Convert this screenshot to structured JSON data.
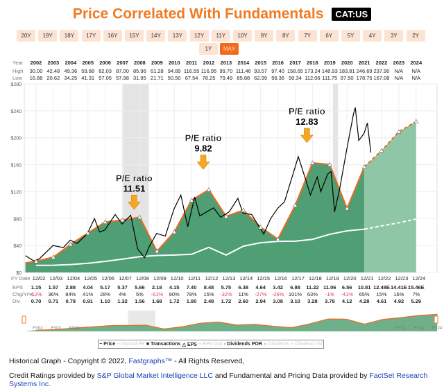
{
  "header": {
    "title": "Price Correlated With Fundamentals",
    "ticker": "CAT:US"
  },
  "ranges": [
    "20Y",
    "19Y",
    "18Y",
    "17Y",
    "16Y",
    "15Y",
    "14Y",
    "13Y",
    "12Y",
    "11Y",
    "10Y",
    "9Y",
    "8Y",
    "7Y",
    "6Y",
    "5Y",
    "4Y",
    "3Y",
    "2Y",
    "1Y",
    "MAX"
  ],
  "active_range": "MAX",
  "table": {
    "year_label": "Year",
    "high_label": "High",
    "low_label": "Low",
    "years": [
      "2002",
      "2003",
      "2004",
      "2005",
      "2006",
      "2007",
      "2008",
      "2009",
      "2010",
      "2011",
      "2012",
      "2013",
      "2014",
      "2015",
      "2016",
      "2017",
      "2018",
      "2019",
      "2020",
      "2021",
      "2022",
      "2023",
      "2024"
    ],
    "high": [
      "30.00",
      "42.48",
      "49.36",
      "59.88",
      "82.03",
      "87.00",
      "85.96",
      "61.28",
      "94.89",
      "116.55",
      "116.95",
      "99.70",
      "111.46",
      "93.57",
      "97.40",
      "158.65",
      "173.24",
      "148.93",
      "183.81",
      "246.69",
      "237.90",
      "N/A",
      "N/A"
    ],
    "low": [
      "16.88",
      "20.62",
      "34.25",
      "41.31",
      "57.05",
      "57.98",
      "31.95",
      "21.71",
      "50.50",
      "67.54",
      "78.25",
      "79.49",
      "85.88",
      "62.99",
      "56.36",
      "90.34",
      "112.06",
      "111.75",
      "87.50",
      "178.75",
      "167.08",
      "N/A",
      "N/A"
    ]
  },
  "bottom": {
    "fy_label": "FY Date",
    "eps_label": "EPS",
    "chg_label": "Chg/Yr%",
    "div_label": "Div",
    "fy": [
      "12/02",
      "12/03",
      "12/04",
      "12/05",
      "12/06",
      "12/07",
      "12/08",
      "12/09",
      "12/10",
      "12/11",
      "12/12",
      "12/13",
      "12/14",
      "12/15",
      "12/16",
      "12/17",
      "12/18",
      "12/19",
      "12/20",
      "12/21",
      "12/22",
      "12/23",
      "12/24"
    ],
    "eps": [
      "1.15",
      "1.57",
      "2.88",
      "4.04",
      "5.17",
      "5.37",
      "5.66",
      "2.18",
      "4.15",
      "7.40",
      "8.48",
      "5.75",
      "6.38",
      "4.64",
      "3.42",
      "6.88",
      "11.22",
      "11.06",
      "6.56",
      "10.81",
      "12.48E",
      "14.41E",
      "15.46E"
    ],
    "chg": [
      "-12%",
      "36%",
      "84%",
      "41%",
      "28%",
      "4%",
      "5%",
      "-61%",
      "90%",
      "78%",
      "15%",
      "-32%",
      "11%",
      "-27%",
      "-26%",
      "101%",
      "63%",
      "-1%",
      "-41%",
      "65%",
      "15%",
      "16%",
      "7%"
    ],
    "div": [
      "0.70",
      "0.71",
      "0.78",
      "0.91",
      "1.10",
      "1.32",
      "1.56",
      "1.68",
      "1.72",
      "1.80",
      "2.48",
      "1.72",
      "2.60",
      "2.94",
      "3.08",
      "3.10",
      "3.28",
      "3.78",
      "4.12",
      "4.28",
      "4.61",
      "4.92",
      "5.29"
    ]
  },
  "chart_data": {
    "type": "line",
    "title": "Price Correlated With Fundamentals",
    "ylim": [
      0,
      280
    ],
    "yticks": [
      "$0",
      "$40",
      "$80",
      "$120",
      "$160",
      "$200",
      "$240",
      "$280"
    ],
    "ytick_values": [
      0,
      40,
      80,
      120,
      160,
      200,
      240,
      280
    ],
    "pe_multiplier": 14.5,
    "div_multiplier": 15,
    "forecast_start_index": 19,
    "recessions": [
      [
        2007.95,
        2009.45
      ],
      [
        2020.1,
        2020.4
      ]
    ],
    "eps_values": [
      1.15,
      1.57,
      2.88,
      4.04,
      5.17,
      5.37,
      5.66,
      2.18,
      4.15,
      7.4,
      8.48,
      5.75,
      6.38,
      4.64,
      3.42,
      6.88,
      11.22,
      11.06,
      6.56,
      10.81,
      12.48,
      14.41,
      15.46
    ],
    "div_values": [
      0.7,
      0.71,
      0.78,
      0.91,
      1.1,
      1.32,
      1.56,
      1.68,
      1.72,
      1.8,
      2.48,
      1.72,
      2.6,
      2.94,
      3.08,
      3.1,
      3.28,
      3.78,
      4.12,
      4.28,
      4.61,
      4.92,
      5.29
    ],
    "price": [
      [
        2002.3,
        25
      ],
      [
        2002.8,
        17
      ],
      [
        2003.1,
        20
      ],
      [
        2003.9,
        40
      ],
      [
        2004.5,
        37
      ],
      [
        2004.9,
        48
      ],
      [
        2005.3,
        43
      ],
      [
        2005.9,
        58
      ],
      [
        2006.3,
        80
      ],
      [
        2006.6,
        60
      ],
      [
        2006.9,
        63
      ],
      [
        2007.5,
        86
      ],
      [
        2007.9,
        72
      ],
      [
        2008.4,
        85
      ],
      [
        2008.8,
        35
      ],
      [
        2009.2,
        22
      ],
      [
        2009.5,
        40
      ],
      [
        2009.9,
        58
      ],
      [
        2010.4,
        54
      ],
      [
        2010.9,
        94
      ],
      [
        2011.3,
        115
      ],
      [
        2011.7,
        68
      ],
      [
        2012.1,
        112
      ],
      [
        2012.4,
        84
      ],
      [
        2012.8,
        90
      ],
      [
        2013.2,
        96
      ],
      [
        2013.6,
        82
      ],
      [
        2014.1,
        90
      ],
      [
        2014.6,
        110
      ],
      [
        2014.9,
        88
      ],
      [
        2015.4,
        86
      ],
      [
        2015.9,
        65
      ],
      [
        2016.1,
        57
      ],
      [
        2016.5,
        80
      ],
      [
        2016.9,
        95
      ],
      [
        2017.3,
        105
      ],
      [
        2017.9,
        155
      ],
      [
        2018.1,
        172
      ],
      [
        2018.5,
        140
      ],
      [
        2018.8,
        115
      ],
      [
        2019.2,
        142
      ],
      [
        2019.4,
        120
      ],
      [
        2019.8,
        146
      ],
      [
        2020.0,
        150
      ],
      [
        2020.2,
        90
      ],
      [
        2020.5,
        125
      ],
      [
        2020.9,
        182
      ],
      [
        2021.3,
        236
      ],
      [
        2021.4,
        245
      ],
      [
        2021.6,
        196
      ],
      [
        2021.9,
        206
      ],
      [
        2022.1,
        222
      ],
      [
        2022.3,
        178
      ]
    ],
    "annotations": [
      {
        "label": "P/E ratio",
        "value": "11.51",
        "year": 2008
      },
      {
        "label": "P/E ratio",
        "value": "9.82",
        "year": 2012
      },
      {
        "label": "P/E ratio",
        "value": "12.83",
        "year": 2018
      }
    ],
    "navigator_labels": [
      "FY02",
      "FY03",
      "FY04",
      "FY22",
      "FY23",
      "FY24"
    ]
  },
  "legend": [
    {
      "label": "Price",
      "on": true,
      "sym": "−"
    },
    {
      "label": "Normal PE",
      "on": false,
      "sym": "+"
    },
    {
      "label": "Transactions",
      "on": true,
      "sym": "■"
    },
    {
      "label": "EPS",
      "on": true,
      "sym": "△"
    },
    {
      "label": "EPS Gwt",
      "on": false,
      "sym": "+"
    },
    {
      "label": "Dividends POR",
      "on": true,
      "sym": "-"
    },
    {
      "label": "Dividends",
      "on": false,
      "sym": "●"
    },
    {
      "label": "Dividend Yld",
      "on": false,
      "sym": "+"
    }
  ],
  "footer": {
    "line1": "Historical Graph - Copyright © 2022, ",
    "line1_link": "Fastgraphs™",
    "line1_end": " - All Rights Reserved,",
    "line2": "Credit Ratings provided by ",
    "line2_link1": "S&P Global Market Intelligence LLC",
    "line2_mid": " and Fundamental and Pricing Data provided by ",
    "line2_link2": "FactSet Research Systems Inc."
  },
  "colors": {
    "accent": "#f07b22",
    "eps_fill": "#4f9e74",
    "forecast_fill": "#8fc7a6",
    "price": "#000000",
    "eps_line": "#f06a1f"
  }
}
